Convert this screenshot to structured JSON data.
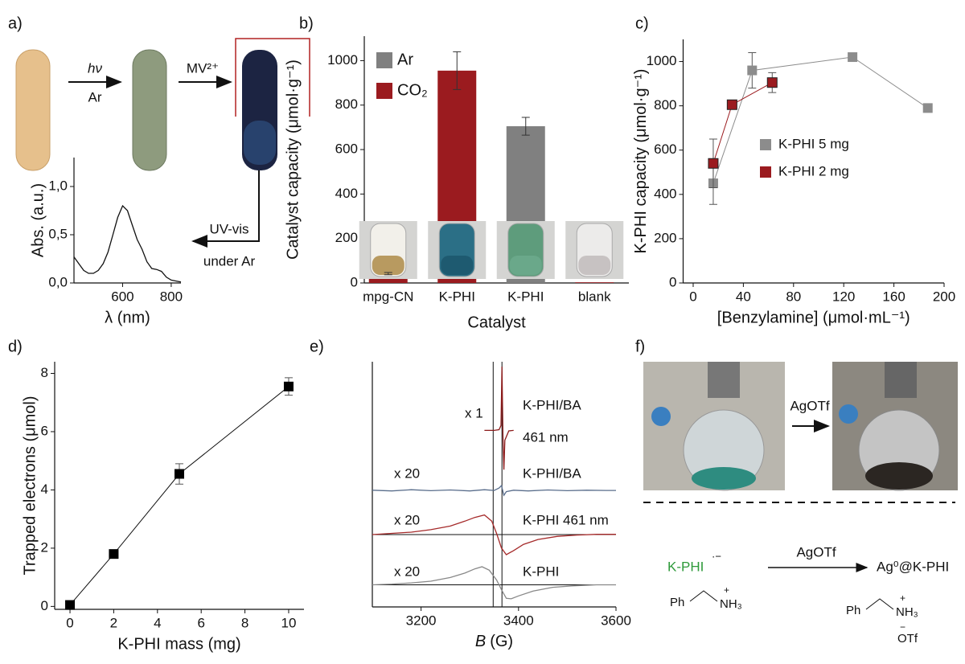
{
  "chart_data": [
    {
      "type": "line",
      "x_label": "λ (nm)",
      "y_label": "Abs. (a.u.)",
      "x": [
        400,
        420,
        440,
        460,
        480,
        500,
        520,
        540,
        560,
        580,
        600,
        620,
        640,
        660,
        680,
        700,
        720,
        740,
        760,
        780,
        800,
        820,
        840
      ],
      "values": [
        0.27,
        0.2,
        0.13,
        0.1,
        0.1,
        0.13,
        0.2,
        0.32,
        0.5,
        0.68,
        0.8,
        0.75,
        0.6,
        0.45,
        0.35,
        0.22,
        0.15,
        0.14,
        0.12,
        0.06,
        0.03,
        0.02,
        0.01
      ],
      "color": "#111111",
      "xlim": [
        400,
        840
      ],
      "xticks": [
        600,
        800
      ],
      "ylim": [
        0,
        1.3
      ],
      "yticks": [
        {
          "value": 0,
          "label": "0,0"
        },
        {
          "value": 0.5,
          "label": "0,5"
        },
        {
          "value": 1,
          "label": "1,0"
        }
      ]
    },
    {
      "type": "bar",
      "x_label": "Catalyst",
      "y_label": "Catalyst capacity (μmol·g⁻¹)",
      "categories": [
        "mpg-CN",
        "K-PHI",
        "K-PHI",
        "blank"
      ],
      "series": [
        {
          "name": "Ar",
          "color": "#808080",
          "values": [
            null,
            null,
            705,
            null
          ],
          "errors": [
            null,
            null,
            40,
            null
          ]
        },
        {
          "name": "CO₂",
          "color": "#9b1b1f",
          "values": [
            42,
            955,
            null,
            3
          ],
          "errors": [
            5,
            85,
            null,
            null
          ]
        }
      ],
      "ylim": [
        0,
        1110
      ],
      "yticks": [
        0,
        200,
        400,
        600,
        800,
        1000
      ]
    },
    {
      "type": "line",
      "x_label": "[Benzylamine] (μmol·mL⁻¹)",
      "y_label": "K-PHI capacity (μmol·g⁻¹)",
      "series": [
        {
          "name": "K-PHI 5 mg",
          "color": "#8c8c8c",
          "x": [
            16,
            47,
            127,
            187
          ],
          "values": [
            450,
            960,
            1020,
            790
          ],
          "errors": [
            95,
            80,
            null,
            null
          ]
        },
        {
          "name": "K-PHI 2 mg",
          "color": "#9b1b1f",
          "x": [
            16,
            31,
            63
          ],
          "values": [
            540,
            805,
            905
          ],
          "errors": [
            110,
            null,
            45
          ]
        }
      ],
      "marker": "square",
      "xlim": [
        -8,
        200
      ],
      "xticks": [
        0,
        40,
        80,
        120,
        160,
        200
      ],
      "ylim": [
        0,
        1100
      ],
      "yticks": [
        0,
        200,
        400,
        600,
        800,
        1000
      ]
    },
    {
      "type": "line",
      "x_label": "K-PHI mass (mg)",
      "y_label": "Trapped electrons (μmol)",
      "series": [
        {
          "color": "#000000",
          "x": [
            0,
            2,
            5,
            10
          ],
          "values": [
            0.05,
            1.8,
            4.55,
            7.55
          ],
          "errors": [
            null,
            0.1,
            0.35,
            0.3
          ]
        }
      ],
      "marker": "square",
      "xlim": [
        -0.7,
        10.7
      ],
      "xticks": [
        0,
        2,
        4,
        6,
        8,
        10
      ],
      "ylim": [
        -0.1,
        8.4
      ],
      "yticks": [
        0,
        2,
        4,
        6,
        8
      ]
    },
    {
      "type": "spectra",
      "x_label_symbol": "B",
      "x_label_unit": "(G)",
      "xlim": [
        3100,
        3600
      ],
      "xticks": [
        3200,
        3400,
        3600
      ],
      "ylim": [
        0,
        100
      ],
      "vlines": [
        3348,
        3366
      ],
      "hlines": [
        29.5,
        9
      ],
      "series": [
        {
          "name": [
            "K-PHI/BA",
            "461 nm"
          ],
          "scale": "x 1",
          "color": "#8b1a1a",
          "x": [
            3330,
            3350,
            3360,
            3364,
            3366,
            3368,
            3370,
            3372,
            3380,
            3390
          ],
          "values": [
            72,
            72,
            72.3,
            74,
            98,
            70,
            56,
            68,
            71.8,
            72
          ]
        },
        {
          "name": [
            "K-PHI/BA"
          ],
          "scale": "x 20",
          "color": "#5a6e8c",
          "x": [
            3100,
            3140,
            3180,
            3220,
            3260,
            3300,
            3330,
            3350,
            3360,
            3365,
            3370,
            3375,
            3390,
            3420,
            3460,
            3500,
            3540,
            3580,
            3600
          ],
          "values": [
            47.6,
            47.3,
            47.8,
            47.4,
            47.7,
            47.3,
            47.8,
            47.5,
            48.5,
            49.5,
            45.5,
            47,
            47.6,
            47.3,
            47.7,
            47.4,
            47.6,
            47.5,
            47.5
          ]
        },
        {
          "name": [
            "K-PHI 461 nm"
          ],
          "scale": "x 20",
          "color": "#a52a2a",
          "x": [
            3100,
            3140,
            3180,
            3220,
            3260,
            3290,
            3310,
            3330,
            3345,
            3355,
            3365,
            3375,
            3390,
            3410,
            3440,
            3480,
            3520,
            3560,
            3600
          ],
          "values": [
            29.5,
            30,
            30.5,
            31.5,
            33,
            35,
            36.5,
            37.5,
            35,
            30,
            24,
            21.3,
            23,
            25.5,
            27.5,
            28.8,
            29.3,
            29.6,
            29.6
          ]
        },
        {
          "name": [
            "K-PHI"
          ],
          "scale": "x 20",
          "color": "#888888",
          "x": [
            3100,
            3140,
            3180,
            3220,
            3260,
            3290,
            3310,
            3325,
            3340,
            3355,
            3365,
            3375,
            3385,
            3400,
            3430,
            3470,
            3510,
            3560,
            3600
          ],
          "values": [
            9,
            9.3,
            9.8,
            10.5,
            12,
            13.8,
            15.5,
            16.4,
            15,
            11,
            7,
            3.5,
            3.3,
            4.5,
            6.5,
            8,
            8.6,
            9,
            9
          ]
        }
      ]
    }
  ],
  "panel_labels": [
    "a)",
    "b)",
    "c)",
    "d)",
    "e)",
    "f)"
  ],
  "scheme_a": {
    "arrow1_top": "hν",
    "arrow1_bottom": "Ar",
    "arrow2_top": "MV²⁺",
    "arrow3_top": "UV-vis",
    "arrow3_bottom": "under Ar"
  },
  "scheme_f": {
    "photo_arrow": "AgOTf",
    "reactant": "K-PHI",
    "reactant_charge": "·−",
    "reaction_arrow": "AgOTf",
    "product": "Ag⁰@K-PHI",
    "reactant_amine": [
      "Ph",
      "NH₃",
      "+"
    ],
    "product_amine": [
      "Ph",
      "NH₃",
      "+",
      "−",
      "OTf"
    ]
  }
}
